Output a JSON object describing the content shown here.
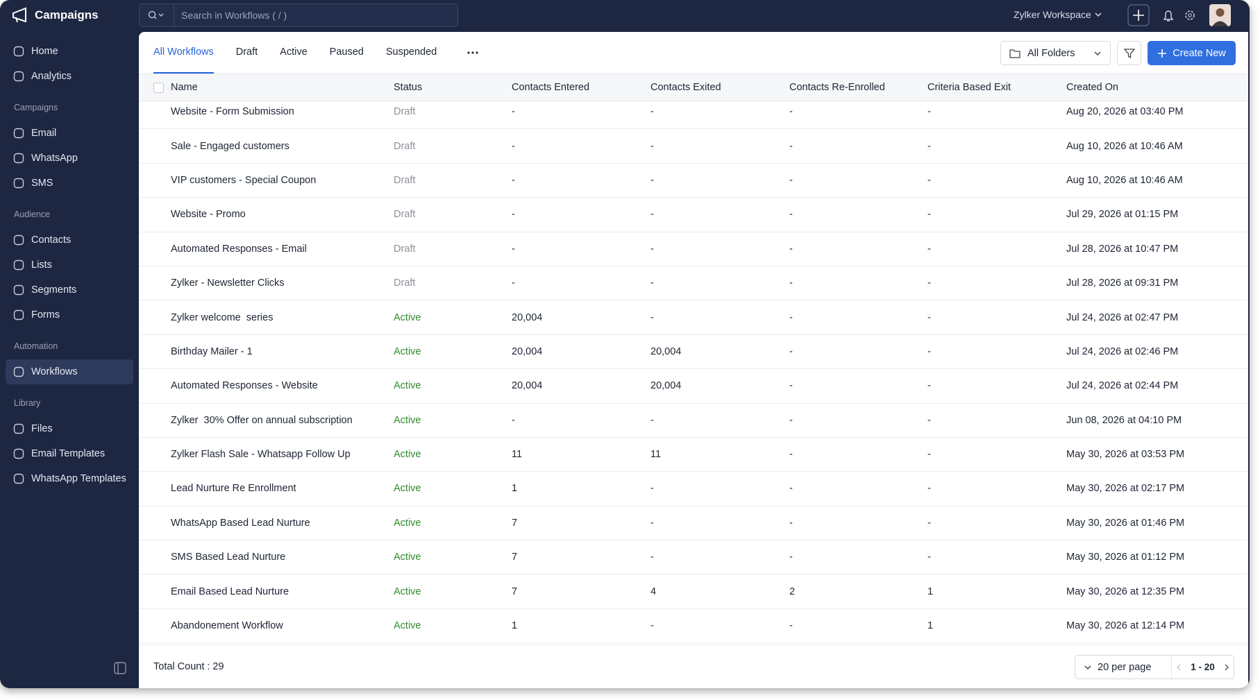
{
  "app": {
    "brand": "Campaigns",
    "search_placeholder": "Search in Workflows ( / )",
    "workspace": "Zylker Workspace"
  },
  "sidebar": {
    "top_items": [
      {
        "label": "Home"
      },
      {
        "label": "Analytics"
      }
    ],
    "sections": [
      {
        "heading": "Campaigns",
        "items": [
          {
            "label": "Email"
          },
          {
            "label": "WhatsApp"
          },
          {
            "label": "SMS"
          }
        ]
      },
      {
        "heading": "Audience",
        "items": [
          {
            "label": "Contacts"
          },
          {
            "label": "Lists"
          },
          {
            "label": "Segments"
          },
          {
            "label": "Forms"
          }
        ]
      },
      {
        "heading": "Automation",
        "items": [
          {
            "label": "Workflows",
            "selected": true
          }
        ]
      },
      {
        "heading": "Library",
        "items": [
          {
            "label": "Files"
          },
          {
            "label": "Email Templates"
          },
          {
            "label": "WhatsApp Templates"
          }
        ]
      }
    ]
  },
  "tabs": [
    {
      "label": "All Workflows",
      "active": true
    },
    {
      "label": "Draft"
    },
    {
      "label": "Active"
    },
    {
      "label": "Paused"
    },
    {
      "label": "Suspended"
    }
  ],
  "toolbar": {
    "folder": "All Folders",
    "create": "Create New"
  },
  "table": {
    "columns": [
      "Name",
      "Status",
      "Contacts Entered",
      "Contacts Exited",
      "Contacts Re-Enrolled",
      "Criteria Based Exit",
      "Created On"
    ],
    "status_colors": {
      "Draft": "#8b9099",
      "Active": "#2d8a2d"
    },
    "rows": [
      [
        "Website - Form Submission",
        "Draft",
        "-",
        "-",
        "-",
        "-",
        "Aug 20, 2026 at 03:40 PM"
      ],
      [
        "Sale - Engaged customers",
        "Draft",
        "-",
        "-",
        "-",
        "-",
        "Aug 10, 2026 at 10:46 AM"
      ],
      [
        "VIP customers - Special Coupon",
        "Draft",
        "-",
        "-",
        "-",
        "-",
        "Aug 10, 2026 at 10:46 AM"
      ],
      [
        "Website - Promo",
        "Draft",
        "-",
        "-",
        "-",
        "-",
        "Jul 29, 2026 at 01:15 PM"
      ],
      [
        "Automated Responses - Email",
        "Draft",
        "-",
        "-",
        "-",
        "-",
        "Jul 28, 2026 at 10:47 PM"
      ],
      [
        "Zylker - Newsletter Clicks",
        "Draft",
        "-",
        "-",
        "-",
        "-",
        "Jul 28, 2026 at 09:31 PM"
      ],
      [
        "Zylker welcome  series",
        "Active",
        "20,004",
        "-",
        "-",
        "-",
        "Jul 24, 2026 at 02:47 PM"
      ],
      [
        "Birthday Mailer - 1",
        "Active",
        "20,004",
        "20,004",
        "-",
        "-",
        "Jul 24, 2026 at 02:46 PM"
      ],
      [
        "Automated Responses - Website",
        "Active",
        "20,004",
        "20,004",
        "-",
        "-",
        "Jul 24, 2026 at 02:44 PM"
      ],
      [
        "Zylker  30% Offer on annual subscription",
        "Active",
        "-",
        "-",
        "-",
        "-",
        "Jun 08, 2026 at 04:10 PM"
      ],
      [
        "Zylker Flash Sale - Whatsapp Follow Up",
        "Active",
        "11",
        "11",
        "-",
        "-",
        "May 30, 2026 at 03:53 PM"
      ],
      [
        "Lead Nurture Re Enrollment",
        "Active",
        "1",
        "-",
        "-",
        "-",
        "May 30, 2026 at 02:17 PM"
      ],
      [
        "WhatsApp Based Lead Nurture",
        "Active",
        "7",
        "-",
        "-",
        "-",
        "May 30, 2026 at 01:46 PM"
      ],
      [
        "SMS Based Lead Nurture",
        "Active",
        "7",
        "-",
        "-",
        "-",
        "May 30, 2026 at 01:12 PM"
      ],
      [
        "Email Based Lead Nurture",
        "Active",
        "7",
        "4",
        "2",
        "1",
        "May 30, 2026 at 12:35 PM"
      ],
      [
        "Abandonement Workflow",
        "Active",
        "1",
        "-",
        "-",
        "1",
        "May 30, 2026 at 12:14 PM"
      ]
    ]
  },
  "footer": {
    "total": "Total Count : 29",
    "per_page": "20 per page",
    "range": "1 - 20"
  }
}
